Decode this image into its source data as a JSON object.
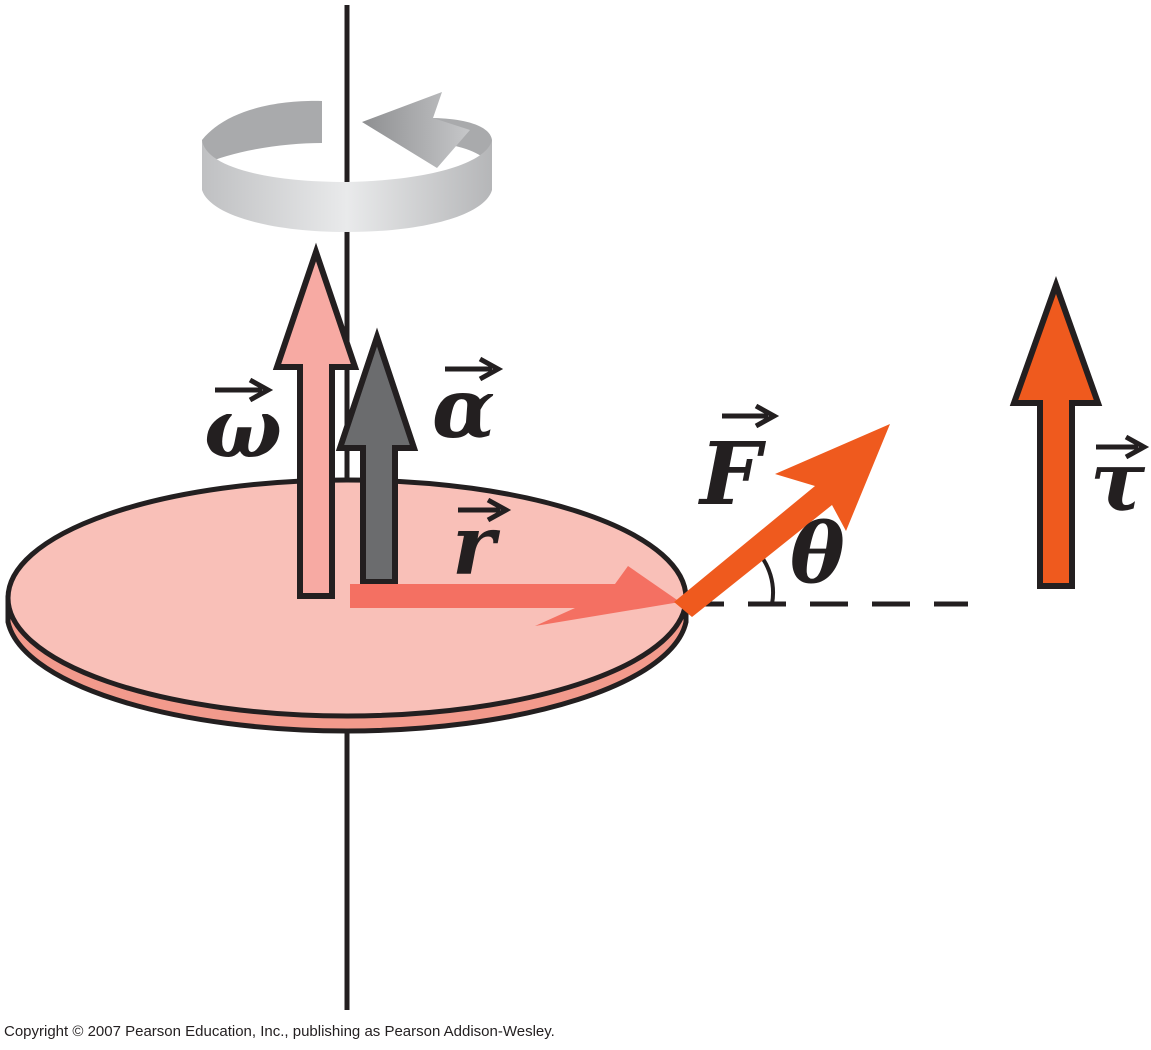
{
  "labels": {
    "omega": "ω",
    "alpha": "α",
    "radius": "r",
    "force": "F",
    "angle": "θ",
    "torque": "τ"
  },
  "footer": {
    "copyright": "Copyright © 2007 Pearson Education, Inc., publishing as Pearson Addison-Wesley."
  },
  "colors": {
    "disk_top": "#f9c0b8",
    "disk_side": "#f29a8c",
    "omega_arrow": "#f7aaa3",
    "alpha_arrow": "#6b6c6e",
    "r_arrow": "#f47062",
    "force_arrow": "#ef5a1e",
    "torque_arrow": "#ef5a1e",
    "rotation_ribbon": "#c8c9cb",
    "outline": "#231f20"
  }
}
